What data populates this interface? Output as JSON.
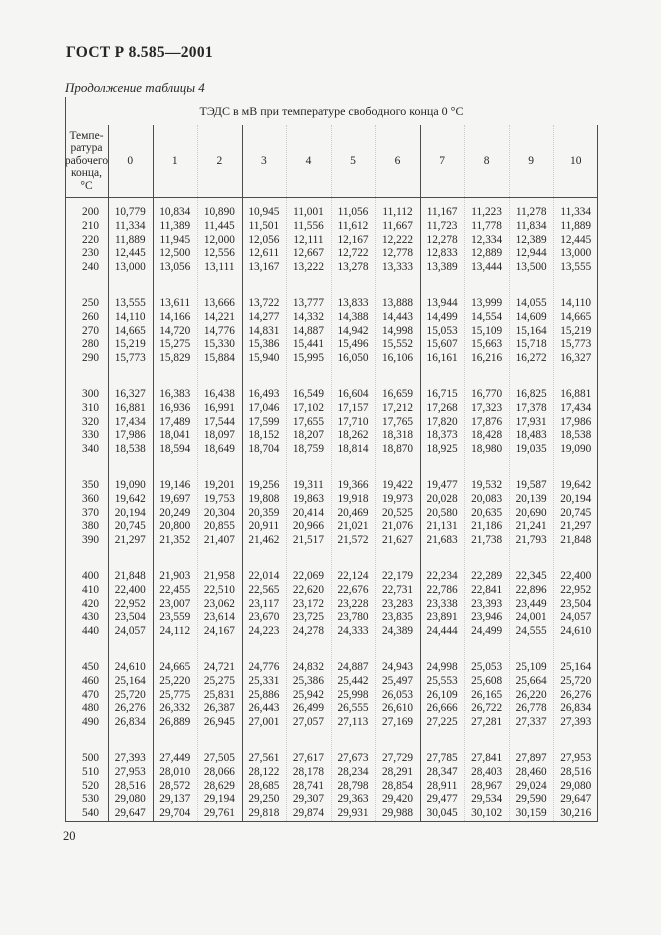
{
  "page": {
    "standard_code": "ГОСТ Р 8.585—2001",
    "table_caption": "Продолжение таблицы 4",
    "page_number": "20"
  },
  "table": {
    "title": "ТЭДС в мВ при температуре свободного конца 0 °С",
    "corner_header_lines": [
      "Темпе-",
      "ратура",
      "рабочего",
      "конца,",
      "°С"
    ],
    "col_headers": [
      "0",
      "1",
      "2",
      "3",
      "4",
      "5",
      "6",
      "7",
      "8",
      "9",
      "10"
    ],
    "groups": [
      [
        [
          "200",
          "10,779",
          "10,834",
          "10,890",
          "10,945",
          "11,001",
          "11,056",
          "11,112",
          "11,167",
          "11,223",
          "11,278",
          "11,334"
        ],
        [
          "210",
          "11,334",
          "11,389",
          "11,445",
          "11,501",
          "11,556",
          "11,612",
          "11,667",
          "11,723",
          "11,778",
          "11,834",
          "11,889"
        ],
        [
          "220",
          "11,889",
          "11,945",
          "12,000",
          "12,056",
          "12,111",
          "12,167",
          "12,222",
          "12,278",
          "12,334",
          "12,389",
          "12,445"
        ],
        [
          "230",
          "12,445",
          "12,500",
          "12,556",
          "12,611",
          "12,667",
          "12,722",
          "12,778",
          "12,833",
          "12,889",
          "12,944",
          "13,000"
        ],
        [
          "240",
          "13,000",
          "13,056",
          "13,111",
          "13,167",
          "13,222",
          "13,278",
          "13,333",
          "13,389",
          "13,444",
          "13,500",
          "13,555"
        ]
      ],
      [
        [
          "250",
          "13,555",
          "13,611",
          "13,666",
          "13,722",
          "13,777",
          "13,833",
          "13,888",
          "13,944",
          "13,999",
          "14,055",
          "14,110"
        ],
        [
          "260",
          "14,110",
          "14,166",
          "14,221",
          "14,277",
          "14,332",
          "14,388",
          "14,443",
          "14,499",
          "14,554",
          "14,609",
          "14,665"
        ],
        [
          "270",
          "14,665",
          "14,720",
          "14,776",
          "14,831",
          "14,887",
          "14,942",
          "14,998",
          "15,053",
          "15,109",
          "15,164",
          "15,219"
        ],
        [
          "280",
          "15,219",
          "15,275",
          "15,330",
          "15,386",
          "15,441",
          "15,496",
          "15,552",
          "15,607",
          "15,663",
          "15,718",
          "15,773"
        ],
        [
          "290",
          "15,773",
          "15,829",
          "15,884",
          "15,940",
          "15,995",
          "16,050",
          "16,106",
          "16,161",
          "16,216",
          "16,272",
          "16,327"
        ]
      ],
      [
        [
          "300",
          "16,327",
          "16,383",
          "16,438",
          "16,493",
          "16,549",
          "16,604",
          "16,659",
          "16,715",
          "16,770",
          "16,825",
          "16,881"
        ],
        [
          "310",
          "16,881",
          "16,936",
          "16,991",
          "17,046",
          "17,102",
          "17,157",
          "17,212",
          "17,268",
          "17,323",
          "17,378",
          "17,434"
        ],
        [
          "320",
          "17,434",
          "17,489",
          "17,544",
          "17,599",
          "17,655",
          "17,710",
          "17,765",
          "17,820",
          "17,876",
          "17,931",
          "17,986"
        ],
        [
          "330",
          "17,986",
          "18,041",
          "18,097",
          "18,152",
          "18,207",
          "18,262",
          "18,318",
          "18,373",
          "18,428",
          "18,483",
          "18,538"
        ],
        [
          "340",
          "18,538",
          "18,594",
          "18,649",
          "18,704",
          "18,759",
          "18,814",
          "18,870",
          "18,925",
          "18,980",
          "19,035",
          "19,090"
        ]
      ],
      [
        [
          "350",
          "19,090",
          "19,146",
          "19,201",
          "19,256",
          "19,311",
          "19,366",
          "19,422",
          "19,477",
          "19,532",
          "19,587",
          "19,642"
        ],
        [
          "360",
          "19,642",
          "19,697",
          "19,753",
          "19,808",
          "19,863",
          "19,918",
          "19,973",
          "20,028",
          "20,083",
          "20,139",
          "20,194"
        ],
        [
          "370",
          "20,194",
          "20,249",
          "20,304",
          "20,359",
          "20,414",
          "20,469",
          "20,525",
          "20,580",
          "20,635",
          "20,690",
          "20,745"
        ],
        [
          "380",
          "20,745",
          "20,800",
          "20,855",
          "20,911",
          "20,966",
          "21,021",
          "21,076",
          "21,131",
          "21,186",
          "21,241",
          "21,297"
        ],
        [
          "390",
          "21,297",
          "21,352",
          "21,407",
          "21,462",
          "21,517",
          "21,572",
          "21,627",
          "21,683",
          "21,738",
          "21,793",
          "21,848"
        ]
      ],
      [
        [
          "400",
          "21,848",
          "21,903",
          "21,958",
          "22,014",
          "22,069",
          "22,124",
          "22,179",
          "22,234",
          "22,289",
          "22,345",
          "22,400"
        ],
        [
          "410",
          "22,400",
          "22,455",
          "22,510",
          "22,565",
          "22,620",
          "22,676",
          "22,731",
          "22,786",
          "22,841",
          "22,896",
          "22,952"
        ],
        [
          "420",
          "22,952",
          "23,007",
          "23,062",
          "23,117",
          "23,172",
          "23,228",
          "23,283",
          "23,338",
          "23,393",
          "23,449",
          "23,504"
        ],
        [
          "430",
          "23,504",
          "23,559",
          "23,614",
          "23,670",
          "23,725",
          "23,780",
          "23,835",
          "23,891",
          "23,946",
          "24,001",
          "24,057"
        ],
        [
          "440",
          "24,057",
          "24,112",
          "24,167",
          "24,223",
          "24,278",
          "24,333",
          "24,389",
          "24,444",
          "24,499",
          "24,555",
          "24,610"
        ]
      ],
      [
        [
          "450",
          "24,610",
          "24,665",
          "24,721",
          "24,776",
          "24,832",
          "24,887",
          "24,943",
          "24,998",
          "25,053",
          "25,109",
          "25,164"
        ],
        [
          "460",
          "25,164",
          "25,220",
          "25,275",
          "25,331",
          "25,386",
          "25,442",
          "25,497",
          "25,553",
          "25,608",
          "25,664",
          "25,720"
        ],
        [
          "470",
          "25,720",
          "25,775",
          "25,831",
          "25,886",
          "25,942",
          "25,998",
          "26,053",
          "26,109",
          "26,165",
          "26,220",
          "26,276"
        ],
        [
          "480",
          "26,276",
          "26,332",
          "26,387",
          "26,443",
          "26,499",
          "26,555",
          "26,610",
          "26,666",
          "26,722",
          "26,778",
          "26,834"
        ],
        [
          "490",
          "26,834",
          "26,889",
          "26,945",
          "27,001",
          "27,057",
          "27,113",
          "27,169",
          "27,225",
          "27,281",
          "27,337",
          "27,393"
        ]
      ],
      [
        [
          "500",
          "27,393",
          "27,449",
          "27,505",
          "27,561",
          "27,617",
          "27,673",
          "27,729",
          "27,785",
          "27,841",
          "27,897",
          "27,953"
        ],
        [
          "510",
          "27,953",
          "28,010",
          "28,066",
          "28,122",
          "28,178",
          "28,234",
          "28,291",
          "28,347",
          "28,403",
          "28,460",
          "28,516"
        ],
        [
          "520",
          "28,516",
          "28,572",
          "28,629",
          "28,685",
          "28,741",
          "28,798",
          "28,854",
          "28,911",
          "28,967",
          "29,024",
          "29,080"
        ],
        [
          "530",
          "29,080",
          "29,137",
          "29,194",
          "29,250",
          "29,307",
          "29,363",
          "29,420",
          "29,477",
          "29,534",
          "29,590",
          "29,647"
        ],
        [
          "540",
          "29,647",
          "29,704",
          "29,761",
          "29,818",
          "29,874",
          "29,931",
          "29,988",
          "30,045",
          "30,102",
          "30,159",
          "30,216"
        ]
      ]
    ]
  }
}
